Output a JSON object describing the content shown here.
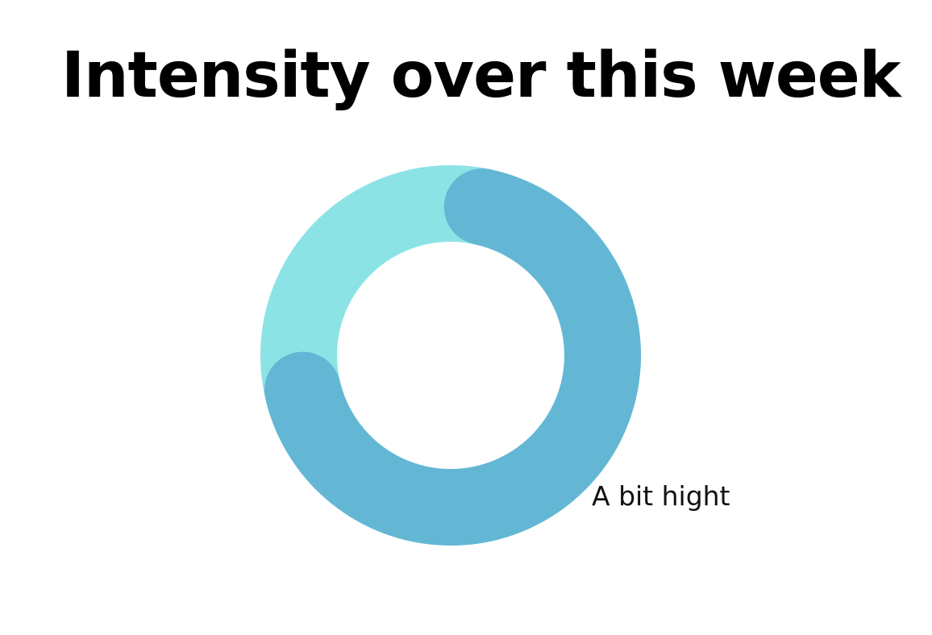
{
  "chart_data": {
    "type": "pie",
    "variant": "donut",
    "title": "Intensity over this week",
    "slices": [
      {
        "label": "",
        "value": 32,
        "color": "#8ce3e6"
      },
      {
        "label": "A bit hight",
        "value": 68,
        "color": "#63b7d4"
      }
    ],
    "legend": "none"
  }
}
